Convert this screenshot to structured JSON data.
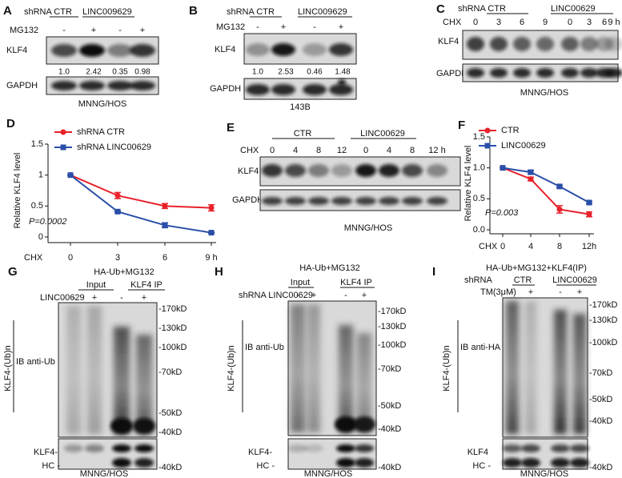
{
  "chart_data": [
    {
      "type": "line",
      "label": "D",
      "ylabel": "Relative KLF4 level",
      "xlabel": "CHX",
      "categories": [
        "0",
        "3",
        "6",
        "9 h"
      ],
      "ylim": [
        0,
        1.5
      ],
      "yticks": [
        0,
        0.5,
        1,
        1.5
      ],
      "annotation": "P=0.0002",
      "series": [
        {
          "name": "shRNA CTR",
          "color": "#e8212a",
          "values": [
            1,
            0.67,
            0.5,
            0.47
          ],
          "errors": [
            0,
            0.05,
            0.04,
            0.05
          ]
        },
        {
          "name": "shRNA LINC00629",
          "color": "#2b4fa8",
          "values": [
            1,
            0.41,
            0.19,
            0.07
          ],
          "errors": [
            0,
            0.01,
            0.04,
            0.01
          ]
        }
      ]
    },
    {
      "type": "line",
      "label": "F",
      "ylabel": "Relative KLF4 level",
      "xlabel": "CHX",
      "categories": [
        "0",
        "4",
        "8",
        "12h"
      ],
      "ylim": [
        0,
        1.5
      ],
      "yticks": [
        {
          "value": 0,
          "label": "0.0"
        },
        0.5,
        {
          "value": 1,
          "label": "1.0"
        },
        1.5
      ],
      "annotation": "P=0.003",
      "series": [
        {
          "name": "CTR",
          "color": "#e8212a",
          "values": [
            1,
            0.82,
            0.33,
            0.25
          ],
          "errors": [
            0,
            0.03,
            0.06,
            0.04
          ]
        },
        {
          "name": "LINC00629",
          "color": "#2b4fa8",
          "values": [
            1,
            0.93,
            0.7,
            0.44
          ],
          "errors": [
            0,
            0.03,
            0.02,
            0.02
          ]
        }
      ]
    }
  ],
  "blots": {
    "A": {
      "letter": "A",
      "groups": [
        "shRNA CTR",
        "LINC009629"
      ],
      "treatment": "MG132",
      "signs": [
        "-",
        "+",
        "-",
        "+"
      ],
      "rows": [
        "KLF4",
        "GAPDH"
      ],
      "quant": [
        "1.0",
        "2.42",
        "0.35",
        "0.98"
      ],
      "cell_line": "MNNG/HOS"
    },
    "B": {
      "letter": "B",
      "groups": [
        "shRNA CTR",
        "LINC009629"
      ],
      "treatment": "MG132",
      "signs": [
        "-",
        "+",
        "-",
        "+"
      ],
      "rows": [
        "KLF4",
        "GAPDH"
      ],
      "quant": [
        "1.0",
        "2.53",
        "0.46",
        "1.48"
      ],
      "cell_line": "143B"
    },
    "C": {
      "letter": "C",
      "groups": [
        "shRNA CTR",
        "LINC00629"
      ],
      "treatment": "CHX",
      "times": [
        "0",
        "3",
        "6",
        "9",
        "0",
        "3",
        "6",
        "9 h"
      ],
      "rows": [
        "KLF4",
        "GAPDH"
      ],
      "cell_line": "MNNG/HOS"
    },
    "E": {
      "letter": "E",
      "groups": [
        "CTR",
        "LINC00629"
      ],
      "treatment": "CHX",
      "times": [
        "0",
        "4",
        "8",
        "12",
        "0",
        "4",
        "8",
        "12 h"
      ],
      "rows": [
        "KLF4",
        "GAPDH"
      ],
      "cell_line": "MNNG/HOS"
    },
    "G": {
      "letter": "G",
      "condition": "HA-Ub+MG132",
      "groups": [
        "Input",
        "KLF4 IP"
      ],
      "treatment": "LINC00629",
      "signs": [
        "-",
        "+",
        "-",
        "+"
      ],
      "side_label": "KLF4-(Ub)n",
      "ib": "IB anti-Ub",
      "markers": [
        "-170kD",
        "-130kD",
        "-100kD",
        "-70kD",
        "-50kD",
        "-40kD"
      ],
      "lower_rows": [
        "KLF4-",
        "HC -"
      ],
      "lower_marker": "-40kD",
      "cell_line": "MNNG/HOS"
    },
    "H": {
      "letter": "H",
      "condition": "HA-Ub+MG132",
      "groups": [
        "Input",
        "KLF4 IP"
      ],
      "treatment": "shRNA LINC00629",
      "signs": [
        "-",
        "+",
        "-",
        "+"
      ],
      "side_label": "KLF4-(Ub)n",
      "ib": "IB anti-Ub",
      "markers": [
        "-170kD",
        "-130kD",
        "-100kD",
        "-70kD",
        "-50kD",
        "-40kD"
      ],
      "lower_rows": [
        "KLF4-",
        "HC -"
      ],
      "lower_marker": "-40kD",
      "cell_line": "MNNG/HOS"
    },
    "I": {
      "letter": "I",
      "condition": "HA-Ub+MG132+KLF4(IP)",
      "shrna": "shRNA",
      "groups": [
        "CTR",
        "LINC00629"
      ],
      "treatment": "TM(3μM)",
      "signs": [
        "-",
        "+",
        "-",
        "+"
      ],
      "side_label": "KLF4-(Ub)n",
      "ib": "IB anti-HA",
      "markers": [
        "-170kD",
        "-130kD",
        "-100kD",
        "-70kD",
        "-50kD",
        "-40kD"
      ],
      "lower_rows": [
        "KLF4",
        "HC -"
      ],
      "lower_marker": "-40kD",
      "cell_line": "MNNG/HOS"
    }
  }
}
